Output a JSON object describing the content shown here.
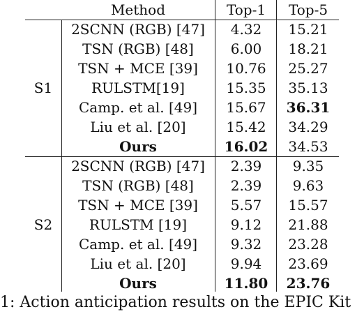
{
  "table": {
    "headers": {
      "method": "Method",
      "top1": "Top-1",
      "top5": "Top-5"
    },
    "groups": [
      {
        "name": "S1",
        "rows": [
          {
            "method": "2SCNN (RGB) [47]",
            "top1": "4.32",
            "top5": "15.21"
          },
          {
            "method": "TSN (RGB) [48]",
            "top1": "6.00",
            "top5": "18.21"
          },
          {
            "method": "TSN + MCE [39]",
            "top1": "10.76",
            "top5": "25.27"
          },
          {
            "method": "RULSTM[19]",
            "top1": "15.35",
            "top5": "35.13"
          },
          {
            "method": "Camp. et al. [49]",
            "top1": "15.67",
            "top5": "36.31"
          },
          {
            "method": "Liu et al. [20]",
            "top1": "15.42",
            "top5": "34.29"
          },
          {
            "method": "Ours",
            "top1": "16.02",
            "top5": "34.53"
          }
        ]
      },
      {
        "name": "S2",
        "rows": [
          {
            "method": "2SCNN (RGB) [47]",
            "top1": "2.39",
            "top5": "9.35"
          },
          {
            "method": "TSN (RGB) [48]",
            "top1": "2.39",
            "top5": "9.63"
          },
          {
            "method": "TSN + MCE [39]",
            "top1": "5.57",
            "top5": "15.57"
          },
          {
            "method": "RULSTM [19]",
            "top1": "9.12",
            "top5": "21.88"
          },
          {
            "method": "Camp. et al. [49]",
            "top1": "9.32",
            "top5": "23.28"
          },
          {
            "method": "Liu et al. [20]",
            "top1": "9.94",
            "top5": "23.69"
          },
          {
            "method": "Ours",
            "top1": "11.80",
            "top5": "23.76"
          }
        ]
      }
    ]
  },
  "caption": "1: Action anticipation results on the EPIC Kit"
}
